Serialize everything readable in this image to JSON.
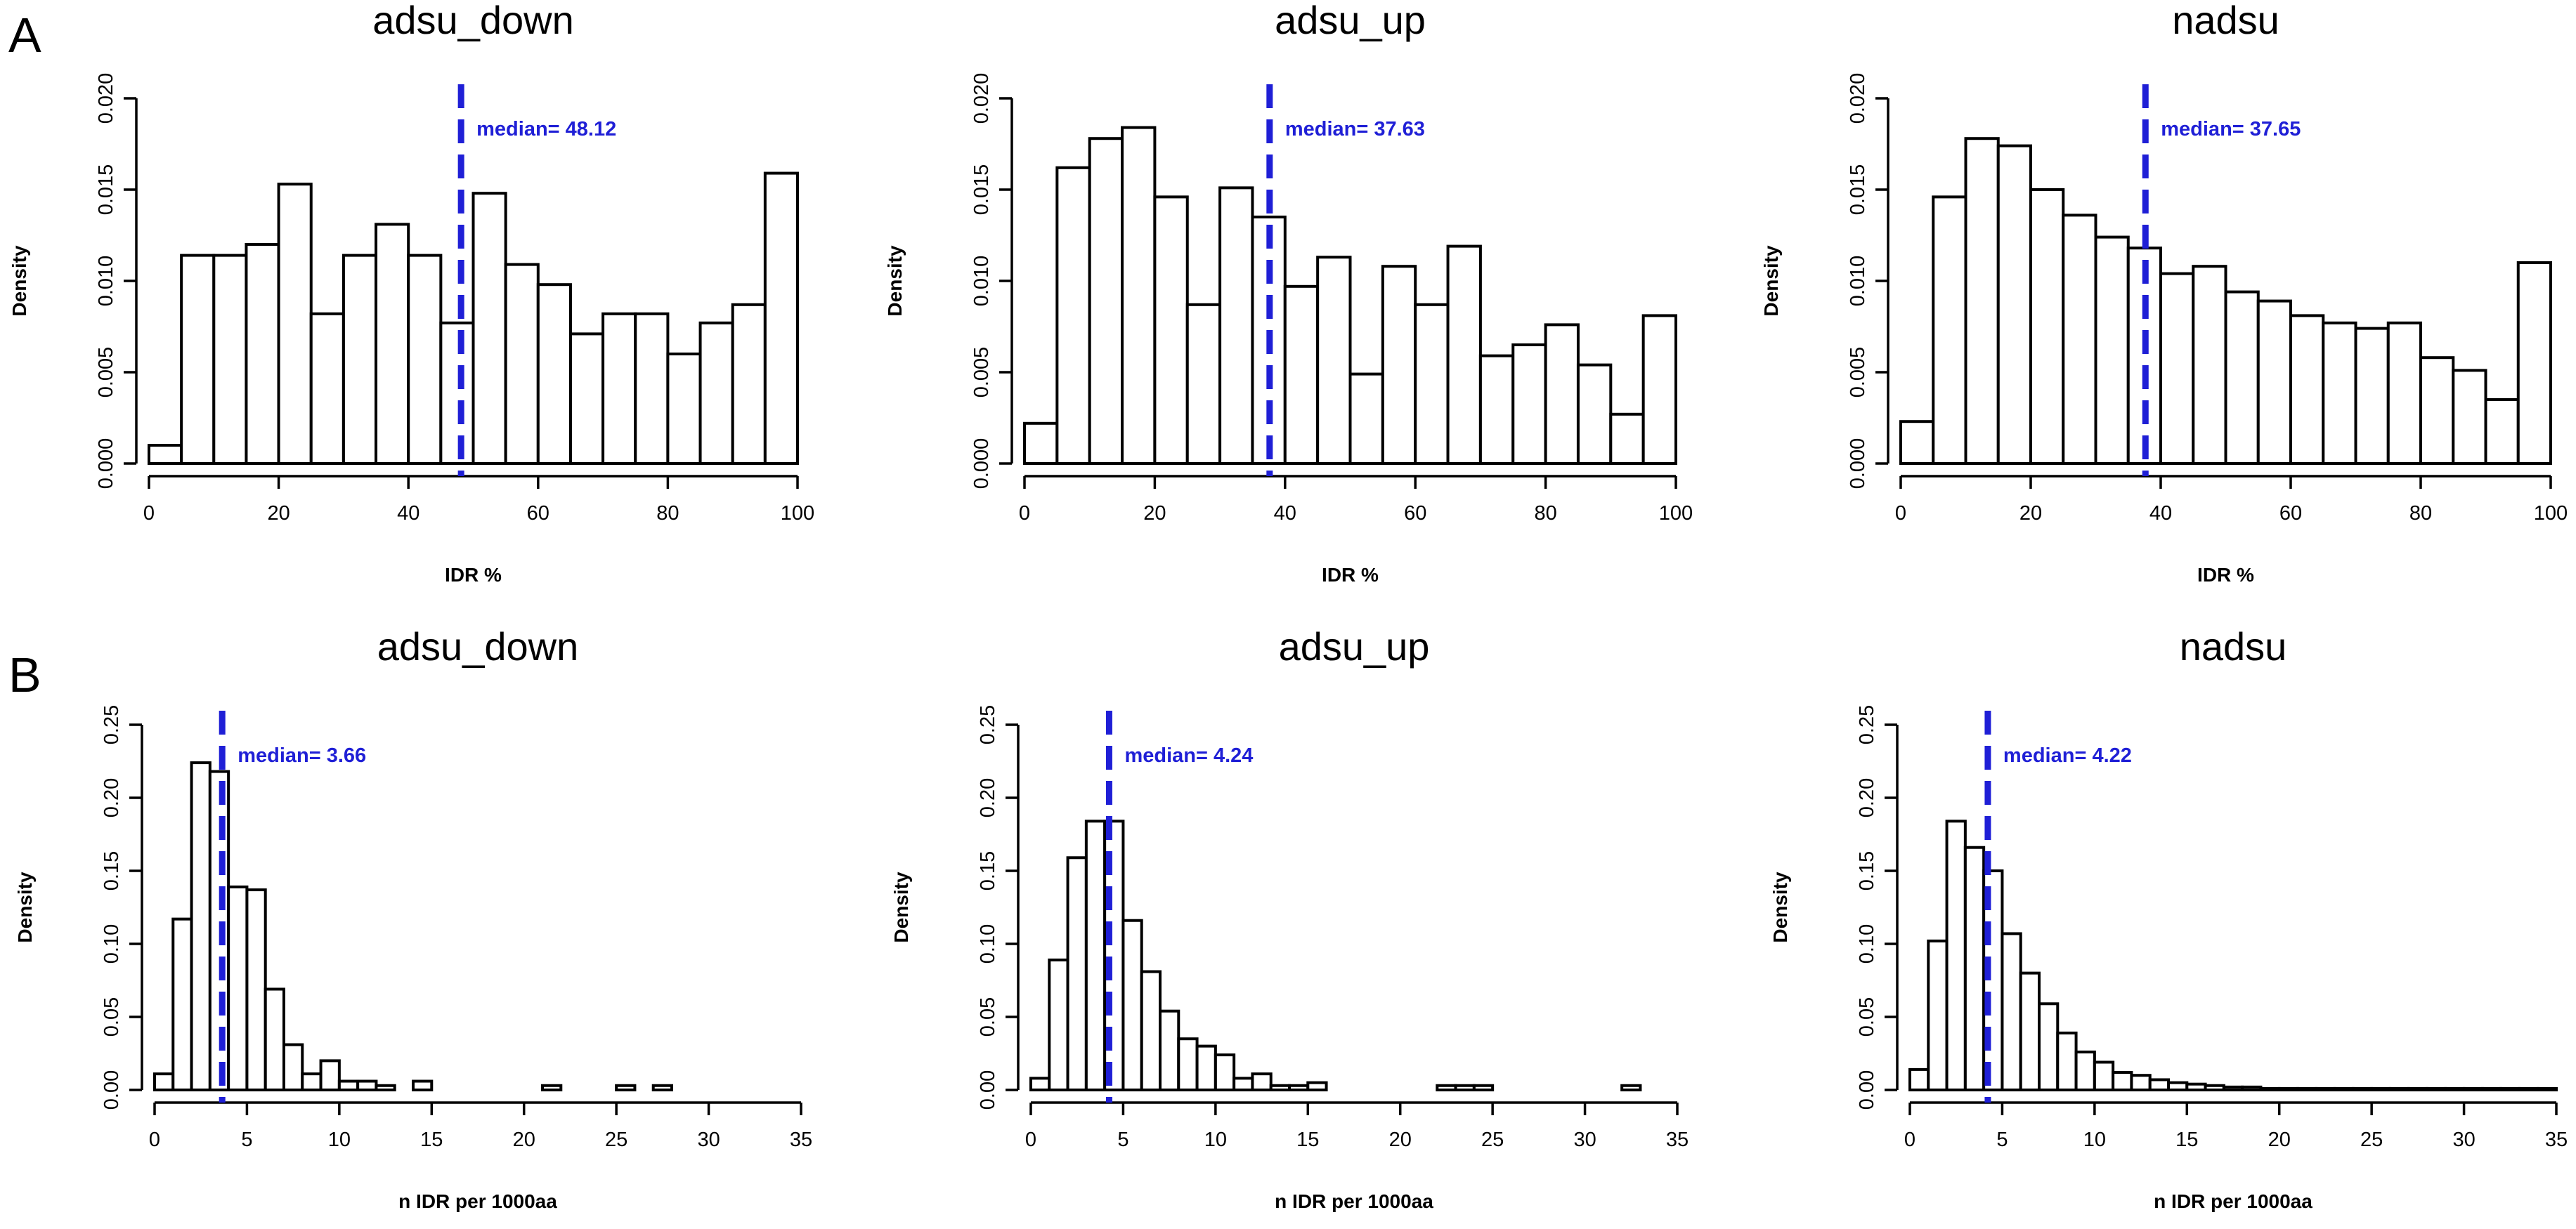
{
  "panel_labels": [
    "A",
    "B"
  ],
  "chart_data": [
    {
      "type": "bar",
      "panel": "A",
      "title": "adsu_down",
      "xlabel": "IDR %",
      "ylabel": "Density",
      "xlim": [
        0,
        100
      ],
      "ylim": [
        0,
        0.02
      ],
      "bin_width": 5,
      "x_ticks": [
        0,
        20,
        40,
        60,
        80,
        100
      ],
      "y_ticks": [
        0.0,
        0.005,
        0.01,
        0.015,
        0.02
      ],
      "y_tick_labels": [
        "0.000",
        "0.005",
        "0.010",
        "0.015",
        "0.020"
      ],
      "bins_start": [
        0,
        5,
        10,
        15,
        20,
        25,
        30,
        35,
        40,
        45,
        50,
        55,
        60,
        65,
        70,
        75,
        80,
        85,
        90,
        95
      ],
      "values": [
        0.001,
        0.0114,
        0.0114,
        0.012,
        0.0153,
        0.0082,
        0.0114,
        0.0131,
        0.0114,
        0.0077,
        0.0148,
        0.0109,
        0.0098,
        0.0071,
        0.0082,
        0.0082,
        0.006,
        0.0077,
        0.0087,
        0.0159
      ],
      "median": 48.12,
      "median_label": "median= 48.12"
    },
    {
      "type": "bar",
      "panel": "A",
      "title": "adsu_up",
      "xlabel": "IDR %",
      "ylabel": "Density",
      "xlim": [
        0,
        100
      ],
      "ylim": [
        0,
        0.02
      ],
      "bin_width": 5,
      "x_ticks": [
        0,
        20,
        40,
        60,
        80,
        100
      ],
      "y_ticks": [
        0.0,
        0.005,
        0.01,
        0.015,
        0.02
      ],
      "y_tick_labels": [
        "0.000",
        "0.005",
        "0.010",
        "0.015",
        "0.020"
      ],
      "bins_start": [
        0,
        5,
        10,
        15,
        20,
        25,
        30,
        35,
        40,
        45,
        50,
        55,
        60,
        65,
        70,
        75,
        80,
        85,
        90,
        95
      ],
      "values": [
        0.0022,
        0.0162,
        0.0178,
        0.0184,
        0.0146,
        0.0087,
        0.0151,
        0.0135,
        0.0097,
        0.0113,
        0.0049,
        0.0108,
        0.0087,
        0.0119,
        0.0059,
        0.0065,
        0.0076,
        0.0054,
        0.0027,
        0.0081
      ],
      "median": 37.63,
      "median_label": "median= 37.63"
    },
    {
      "type": "bar",
      "panel": "A",
      "title": "nadsu",
      "xlabel": "IDR %",
      "ylabel": "Density",
      "xlim": [
        0,
        100
      ],
      "ylim": [
        0,
        0.02
      ],
      "bin_width": 5,
      "x_ticks": [
        0,
        20,
        40,
        60,
        80,
        100
      ],
      "y_ticks": [
        0.0,
        0.005,
        0.01,
        0.015,
        0.02
      ],
      "y_tick_labels": [
        "0.000",
        "0.005",
        "0.010",
        "0.015",
        "0.020"
      ],
      "bins_start": [
        0,
        5,
        10,
        15,
        20,
        25,
        30,
        35,
        40,
        45,
        50,
        55,
        60,
        65,
        70,
        75,
        80,
        85,
        90,
        95
      ],
      "values": [
        0.0023,
        0.0146,
        0.0178,
        0.0174,
        0.015,
        0.0136,
        0.0124,
        0.0118,
        0.0104,
        0.0108,
        0.0094,
        0.0089,
        0.0081,
        0.0077,
        0.0074,
        0.0077,
        0.0058,
        0.0051,
        0.0035,
        0.011
      ],
      "median": 37.65,
      "median_label": "median= 37.65"
    },
    {
      "type": "bar",
      "panel": "B",
      "title": "adsu_down",
      "xlabel": "n IDR per 1000aa",
      "ylabel": "Density",
      "xlim": [
        0,
        35
      ],
      "ylim": [
        0,
        0.25
      ],
      "bin_width": 1,
      "x_ticks": [
        0,
        5,
        10,
        15,
        20,
        25,
        30,
        35
      ],
      "y_ticks": [
        0.0,
        0.05,
        0.1,
        0.15,
        0.2,
        0.25
      ],
      "y_tick_labels": [
        "0.00",
        "0.05",
        "0.10",
        "0.15",
        "0.20",
        "0.25"
      ],
      "bins_start": [
        0,
        1,
        2,
        3,
        4,
        5,
        6,
        7,
        8,
        9,
        10,
        11,
        12,
        13,
        14,
        15,
        16,
        17,
        18,
        19,
        20,
        21,
        22,
        23,
        24,
        25,
        26,
        27,
        28,
        29,
        30,
        31,
        32,
        33,
        34
      ],
      "values": [
        0.011,
        0.117,
        0.224,
        0.218,
        0.139,
        0.137,
        0.069,
        0.031,
        0.011,
        0.02,
        0.006,
        0.006,
        0.003,
        0.0,
        0.006,
        0.0,
        0.0,
        0.0,
        0.0,
        0.0,
        0.0,
        0.003,
        0.0,
        0.0,
        0.0,
        0.003,
        0.0,
        0.003,
        0.0,
        0.0,
        0.0,
        0.0,
        0.0,
        0.0,
        0.0
      ],
      "median": 3.66,
      "median_label": "median= 3.66"
    },
    {
      "type": "bar",
      "panel": "B",
      "title": "adsu_up",
      "xlabel": "n IDR per 1000aa",
      "ylabel": "Density",
      "xlim": [
        0,
        35
      ],
      "ylim": [
        0,
        0.25
      ],
      "bin_width": 1,
      "x_ticks": [
        0,
        5,
        10,
        15,
        20,
        25,
        30,
        35
      ],
      "y_ticks": [
        0.0,
        0.05,
        0.1,
        0.15,
        0.2,
        0.25
      ],
      "y_tick_labels": [
        "0.00",
        "0.05",
        "0.10",
        "0.15",
        "0.20",
        "0.25"
      ],
      "bins_start": [
        0,
        1,
        2,
        3,
        4,
        5,
        6,
        7,
        8,
        9,
        10,
        11,
        12,
        13,
        14,
        15,
        16,
        17,
        18,
        19,
        20,
        21,
        22,
        23,
        24,
        25,
        26,
        27,
        28,
        29,
        30,
        31,
        32,
        33,
        34
      ],
      "values": [
        0.008,
        0.089,
        0.159,
        0.184,
        0.184,
        0.116,
        0.081,
        0.054,
        0.035,
        0.03,
        0.024,
        0.008,
        0.011,
        0.003,
        0.003,
        0.005,
        0.0,
        0.0,
        0.0,
        0.0,
        0.0,
        0.0,
        0.003,
        0.003,
        0.003,
        0.0,
        0.0,
        0.0,
        0.0,
        0.0,
        0.0,
        0.0,
        0.003,
        0.0,
        0.0
      ],
      "median": 4.24,
      "median_label": "median= 4.24"
    },
    {
      "type": "bar",
      "panel": "B",
      "title": "nadsu",
      "xlabel": "n IDR per 1000aa",
      "ylabel": "Density",
      "xlim": [
        0,
        35
      ],
      "ylim": [
        0,
        0.25
      ],
      "bin_width": 1,
      "x_ticks": [
        0,
        5,
        10,
        15,
        20,
        25,
        30,
        35
      ],
      "y_ticks": [
        0.0,
        0.05,
        0.1,
        0.15,
        0.2,
        0.25
      ],
      "y_tick_labels": [
        "0.00",
        "0.05",
        "0.10",
        "0.15",
        "0.20",
        "0.25"
      ],
      "bins_start": [
        0,
        1,
        2,
        3,
        4,
        5,
        6,
        7,
        8,
        9,
        10,
        11,
        12,
        13,
        14,
        15,
        16,
        17,
        18,
        19,
        20,
        21,
        22,
        23,
        24,
        25,
        26,
        27,
        28,
        29,
        30,
        31,
        32,
        33,
        34
      ],
      "values": [
        0.014,
        0.102,
        0.184,
        0.166,
        0.15,
        0.107,
        0.08,
        0.059,
        0.039,
        0.026,
        0.019,
        0.012,
        0.01,
        0.007,
        0.005,
        0.004,
        0.003,
        0.002,
        0.002,
        0.001,
        0.001,
        0.001,
        0.001,
        0.001,
        0.001,
        0.001,
        0.001,
        0.001,
        0.001,
        0.001,
        0.001,
        0.001,
        0.001,
        0.001,
        0.001
      ],
      "median": 4.22,
      "median_label": "median= 4.22"
    }
  ]
}
